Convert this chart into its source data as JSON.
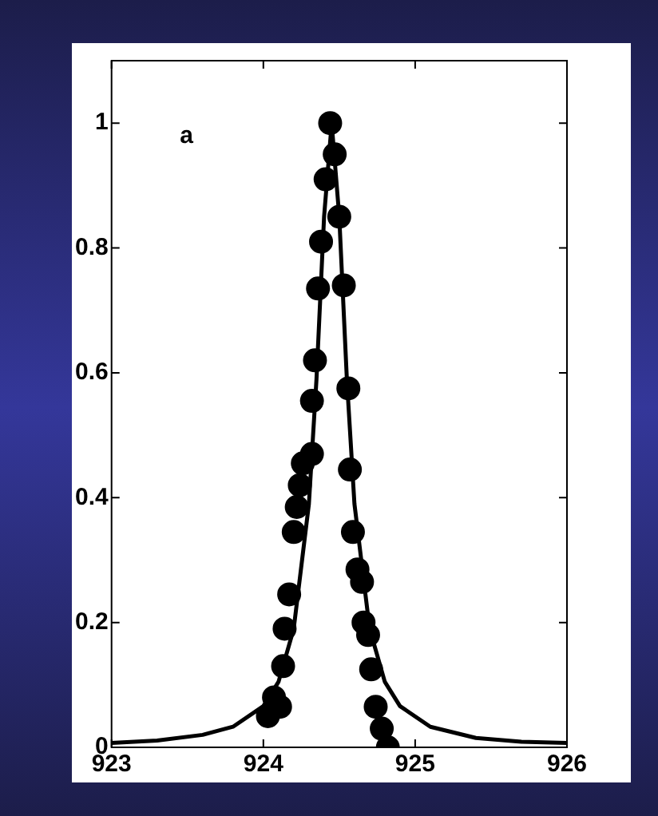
{
  "chart_data": {
    "type": "scatter",
    "annotations": [
      "a"
    ],
    "xlim": [
      923,
      926
    ],
    "xticks": [
      923,
      924,
      925,
      926
    ],
    "ylim": [
      0,
      1.1
    ],
    "yticks": [
      0,
      0.2,
      0.4,
      0.6,
      0.8,
      1
    ],
    "grid": false,
    "legend": false,
    "series": [
      {
        "type": "scatter",
        "color": "#000000",
        "marker": "circle",
        "x": [
          924.44,
          924.47,
          924.41,
          924.5,
          924.38,
          924.36,
          924.53,
          924.34,
          924.32,
          924.56,
          924.32,
          924.26,
          924.24,
          924.22,
          924.2,
          924.57,
          924.59,
          924.62,
          924.65,
          924.66,
          924.69,
          924.17,
          924.14,
          924.13,
          924.71,
          924.07,
          924.11,
          924.03,
          924.74,
          924.78,
          924.82
        ],
        "values": [
          1.0,
          0.95,
          0.91,
          0.85,
          0.81,
          0.735,
          0.74,
          0.62,
          0.555,
          0.575,
          0.47,
          0.455,
          0.42,
          0.385,
          0.345,
          0.445,
          0.345,
          0.285,
          0.265,
          0.2,
          0.18,
          0.245,
          0.19,
          0.13,
          0.125,
          0.08,
          0.065,
          0.05,
          0.065,
          0.03,
          0.0
        ]
      },
      {
        "type": "line",
        "color": "#000000",
        "marker": "none",
        "line_style": "solid",
        "x": [
          923,
          923.3,
          923.6,
          923.8,
          924,
          924.1,
          924.2,
          924.3,
          924.35,
          924.4,
          924.45,
          924.5,
          924.55,
          924.6,
          924.7,
          924.8,
          924.9,
          925.1,
          925.4,
          925.7,
          926
        ],
        "values": [
          0.007,
          0.011,
          0.02,
          0.033,
          0.066,
          0.105,
          0.19,
          0.39,
          0.59,
          0.85,
          1.0,
          0.85,
          0.59,
          0.39,
          0.19,
          0.105,
          0.066,
          0.033,
          0.015,
          0.009,
          0.007
        ]
      }
    ]
  }
}
